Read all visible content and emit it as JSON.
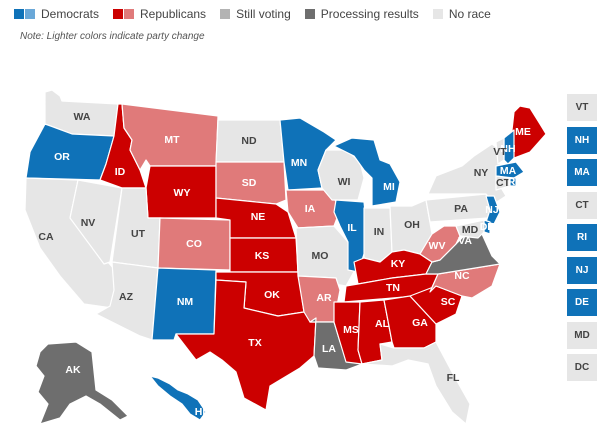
{
  "colors": {
    "dem": "#0f72b8",
    "dem_change": "#6aa8d8",
    "rep": "#cc0000",
    "rep_change": "#e07a7a",
    "voting": "#b3b3b3",
    "processing": "#6e6e6e",
    "none": "#e6e6e6"
  },
  "legend": [
    {
      "key": "dem",
      "label": "Democrats",
      "colors": [
        "#0f72b8",
        "#6aa8d8"
      ]
    },
    {
      "key": "rep",
      "label": "Republicans",
      "colors": [
        "#cc0000",
        "#e07a7a"
      ]
    },
    {
      "key": "voting",
      "label": "Still voting",
      "colors": [
        "#b3b3b3"
      ]
    },
    {
      "key": "processing",
      "label": "Processing results",
      "colors": [
        "#6e6e6e"
      ]
    },
    {
      "key": "none",
      "label": "No race",
      "colors": [
        "#e6e6e6"
      ]
    }
  ],
  "note": "Note: Lighter colors indicate party change",
  "states": {
    "WA": "none",
    "OR": "dem",
    "CA": "none",
    "NV": "none",
    "ID": "rep",
    "MT": "rep_change",
    "WY": "rep",
    "UT": "none",
    "AZ": "none",
    "CO": "rep_change",
    "NM": "dem",
    "ND": "none",
    "SD": "rep_change",
    "NE": "rep",
    "KS": "rep",
    "OK": "rep",
    "TX": "rep",
    "MN": "dem",
    "IA": "rep_change",
    "MO": "none",
    "AR": "rep_change",
    "LA": "processing",
    "WI": "none",
    "IL": "dem",
    "MI": "dem",
    "IN": "none",
    "OH": "none",
    "KY": "rep",
    "TN": "rep",
    "MS": "rep",
    "AL": "rep",
    "GA": "rep",
    "FL": "none",
    "SC": "rep",
    "NC": "rep_change",
    "VA": "processing",
    "WV": "rep_change",
    "PA": "none",
    "NY": "none",
    "ME": "rep",
    "NH": "dem",
    "VT": "none",
    "MA": "dem",
    "CT": "none",
    "RI": "dem",
    "NJ": "dem",
    "DE": "dem",
    "MD": "none",
    "AK": "processing",
    "HI": "dem"
  },
  "squares": [
    {
      "abbr": "VT",
      "status": "none"
    },
    {
      "abbr": "NH",
      "status": "dem"
    },
    {
      "abbr": "MA",
      "status": "dem"
    },
    {
      "abbr": "CT",
      "status": "none"
    },
    {
      "abbr": "RI",
      "status": "dem"
    },
    {
      "abbr": "NJ",
      "status": "dem"
    },
    {
      "abbr": "DE",
      "status": "dem"
    },
    {
      "abbr": "MD",
      "status": "none"
    },
    {
      "abbr": "DC",
      "status": "none"
    }
  ]
}
